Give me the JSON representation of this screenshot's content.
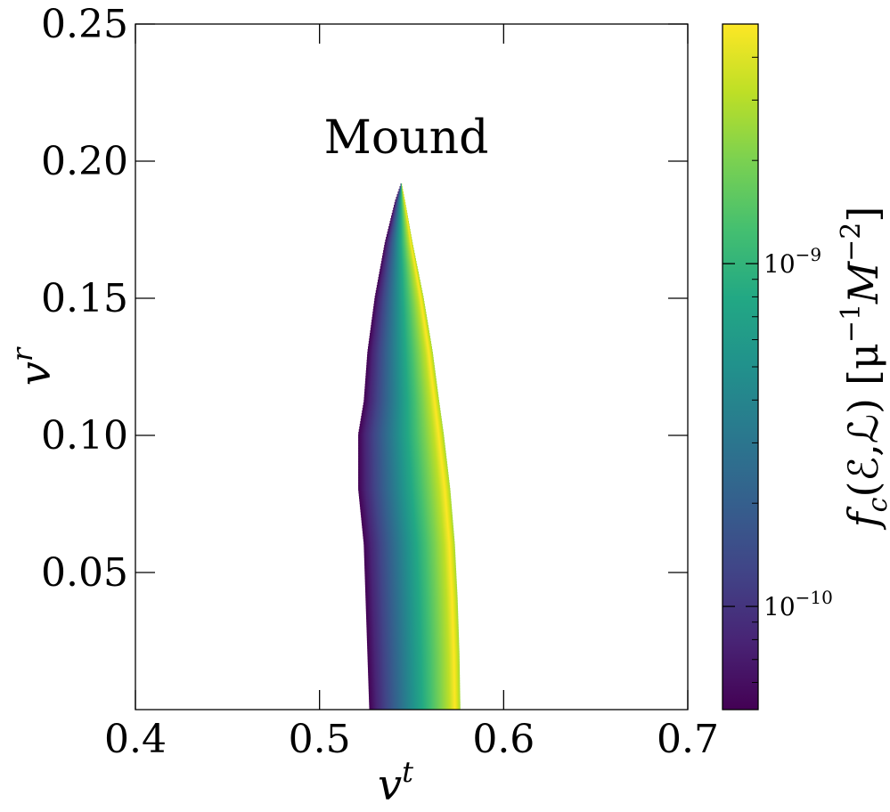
{
  "chart_data": {
    "type": "heatmap",
    "annotation": "Mound",
    "xlabel": "v",
    "xlabel_sup": "t",
    "ylabel": "v",
    "ylabel_sup": "r",
    "xlim": [
      0.4,
      0.7
    ],
    "ylim": [
      0.0,
      0.25
    ],
    "x_ticks": [
      {
        "value": 0.4,
        "label": "0.4"
      },
      {
        "value": 0.5,
        "label": "0.5"
      },
      {
        "value": 0.6,
        "label": "0.6"
      },
      {
        "value": 0.7,
        "label": "0.7"
      }
    ],
    "y_ticks": [
      {
        "value": 0.05,
        "label": "0.05"
      },
      {
        "value": 0.1,
        "label": "0.10"
      },
      {
        "value": 0.15,
        "label": "0.15"
      },
      {
        "value": 0.2,
        "label": "0.20"
      },
      {
        "value": 0.25,
        "label": "0.25"
      }
    ],
    "region": {
      "description_points": [
        {
          "vr": 0.0,
          "vt_min": 0.527,
          "vt_max": 0.5765
        },
        {
          "vr": 0.02,
          "vt_min": 0.526,
          "vt_max": 0.576
        },
        {
          "vr": 0.04,
          "vt_min": 0.525,
          "vt_max": 0.575
        },
        {
          "vr": 0.06,
          "vt_min": 0.524,
          "vt_max": 0.5735
        },
        {
          "vr": 0.08,
          "vt_min": 0.521,
          "vt_max": 0.571
        },
        {
          "vr": 0.1,
          "vt_min": 0.521,
          "vt_max": 0.5675
        },
        {
          "vr": 0.112,
          "vt_min": 0.524,
          "vt_max": 0.565
        },
        {
          "vr": 0.13,
          "vt_min": 0.526,
          "vt_max": 0.5615
        },
        {
          "vr": 0.15,
          "vt_min": 0.53,
          "vt_max": 0.5565
        },
        {
          "vr": 0.17,
          "vt_min": 0.5355,
          "vt_max": 0.5505
        },
        {
          "vr": 0.185,
          "vt_min": 0.541,
          "vt_max": 0.5465
        },
        {
          "vr": 0.192,
          "vt_min": 0.5445,
          "vt_max": 0.5445
        }
      ],
      "value_min": 5e-11,
      "value_max": 5e-09
    },
    "colorbar": {
      "colormap": "viridis",
      "scale": "log",
      "vmin": 5e-11,
      "vmax": 5e-09,
      "ticks": [
        {
          "value": 1e-10,
          "label_base": "10",
          "label_exp": "−10"
        },
        {
          "value": 1e-09,
          "label_base": "10",
          "label_exp": "−9"
        }
      ],
      "label_f": "f",
      "label_sub": "c",
      "label_args": "(ℰ,ℒ)",
      "label_units": "[μ",
      "label_units_exp1": "−1",
      "label_units_mid": "M",
      "label_units_exp2": "−2",
      "label_units_end": "]"
    }
  }
}
